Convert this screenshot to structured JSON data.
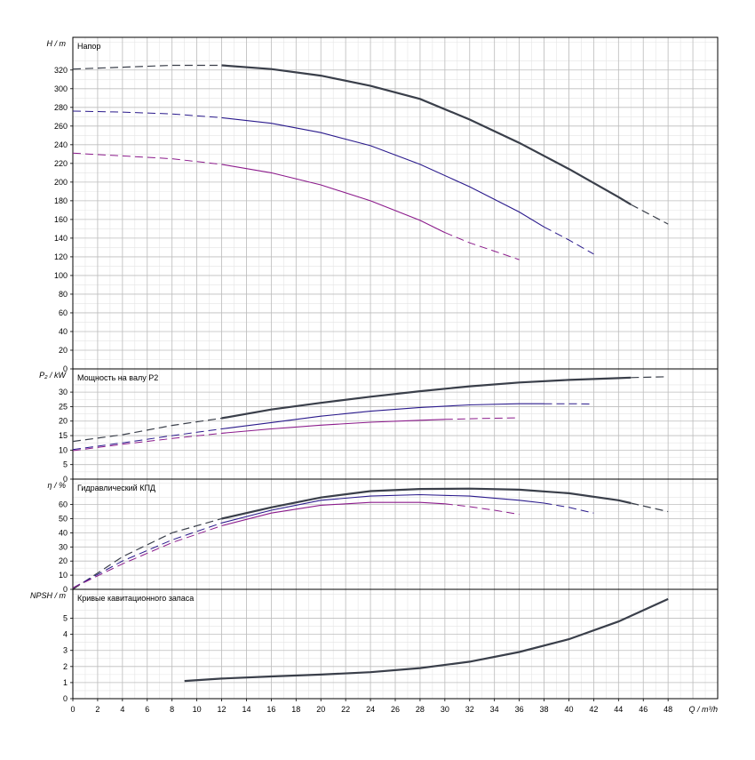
{
  "chart_data": [
    {
      "type": "line",
      "title": "Напор",
      "ylabel": "H / m",
      "xlabel": "Q / m³/h",
      "xlim": [
        0,
        52
      ],
      "ylim": [
        0,
        355
      ],
      "x_ticks": [
        0,
        2,
        4,
        6,
        8,
        10,
        12,
        14,
        16,
        18,
        20,
        22,
        24,
        26,
        28,
        30,
        32,
        34,
        36,
        38,
        40,
        42,
        44,
        46,
        48
      ],
      "y_ticks": [
        0,
        20,
        40,
        60,
        80,
        100,
        120,
        140,
        160,
        180,
        200,
        220,
        240,
        260,
        280,
        300,
        320
      ],
      "grid": true,
      "series": [
        {
          "color": "#3a3f4a",
          "thick": true,
          "solid_range": [
            12,
            45
          ],
          "x": [
            0,
            4,
            8,
            12,
            16,
            20,
            24,
            28,
            32,
            36,
            40,
            44,
            45,
            48
          ],
          "y": [
            321,
            323,
            325,
            325,
            321,
            314,
            303,
            289,
            267,
            242,
            214,
            184,
            176,
            155
          ]
        },
        {
          "color": "#2a1a8c",
          "thick": false,
          "solid_range": [
            12,
            38
          ],
          "x": [
            0,
            4,
            8,
            12,
            16,
            20,
            24,
            28,
            32,
            36,
            38,
            40,
            42
          ],
          "y": [
            276,
            275,
            273,
            269,
            263,
            253,
            239,
            219,
            195,
            168,
            152,
            138,
            123
          ]
        },
        {
          "color": "#8b1a8b",
          "thick": false,
          "solid_range": [
            12,
            30
          ],
          "x": [
            0,
            4,
            8,
            12,
            16,
            20,
            24,
            28,
            30,
            32,
            34,
            36
          ],
          "y": [
            231,
            228,
            225,
            219,
            210,
            197,
            180,
            159,
            146,
            135,
            126,
            117
          ]
        }
      ]
    },
    {
      "type": "line",
      "title": "Мощность на валу P2",
      "ylabel": "P₂ / kW",
      "xlim": [
        0,
        52
      ],
      "ylim": [
        0,
        38
      ],
      "y_ticks": [
        0,
        5,
        10,
        15,
        20,
        25,
        30
      ],
      "grid": true,
      "series": [
        {
          "color": "#3a3f4a",
          "thick": true,
          "solid_range": [
            12,
            45
          ],
          "x": [
            0,
            4,
            8,
            12,
            16,
            20,
            24,
            28,
            32,
            36,
            40,
            44,
            45,
            48
          ],
          "y": [
            13,
            15.3,
            18.5,
            21,
            24,
            26.3,
            28.4,
            30.3,
            32,
            33.3,
            34.2,
            34.8,
            35,
            35.3
          ]
        },
        {
          "color": "#2a1a8c",
          "thick": false,
          "solid_range": [
            12,
            38
          ],
          "x": [
            0,
            4,
            8,
            12,
            16,
            20,
            24,
            28,
            32,
            36,
            38,
            40,
            42
          ],
          "y": [
            10.2,
            12.5,
            15,
            17.3,
            19.5,
            21.7,
            23.4,
            24.7,
            25.6,
            26,
            26,
            26,
            25.9
          ]
        },
        {
          "color": "#8b1a8b",
          "thick": false,
          "solid_range": [
            12,
            30
          ],
          "x": [
            0,
            4,
            8,
            12,
            16,
            20,
            24,
            28,
            30,
            32,
            34,
            36
          ],
          "y": [
            9.8,
            12,
            14,
            15.8,
            17.3,
            18.6,
            19.6,
            20.3,
            20.6,
            20.8,
            21,
            21.1
          ]
        }
      ]
    },
    {
      "type": "line",
      "title": "Гидравлический КПД",
      "ylabel": "η / %",
      "xlim": [
        0,
        52
      ],
      "ylim": [
        0,
        78
      ],
      "y_ticks": [
        0,
        10,
        20,
        30,
        40,
        50,
        60
      ],
      "grid": true,
      "series": [
        {
          "color": "#3a3f4a",
          "thick": true,
          "solid_range": [
            12,
            45
          ],
          "x": [
            0,
            4,
            8,
            12,
            16,
            20,
            24,
            28,
            32,
            36,
            40,
            44,
            45,
            48
          ],
          "y": [
            0,
            23,
            40,
            50,
            58,
            65,
            69.5,
            71,
            71.3,
            70.5,
            68,
            63,
            61,
            55
          ]
        },
        {
          "color": "#2a1a8c",
          "thick": false,
          "solid_range": [
            12,
            38
          ],
          "x": [
            0,
            4,
            8,
            12,
            16,
            20,
            24,
            28,
            32,
            36,
            38,
            40,
            42
          ],
          "y": [
            1,
            20,
            35,
            47,
            56,
            63,
            66,
            67,
            66,
            63,
            61,
            58,
            54
          ]
        },
        {
          "color": "#8b1a8b",
          "thick": false,
          "solid_range": [
            12,
            30
          ],
          "x": [
            0,
            4,
            8,
            12,
            16,
            20,
            24,
            28,
            30,
            32,
            34,
            36
          ],
          "y": [
            1,
            18,
            33,
            45,
            54,
            59.5,
            61.5,
            61.5,
            60.5,
            58.5,
            56,
            53
          ]
        }
      ]
    },
    {
      "type": "line",
      "title": "Кривые кавитационного запаса",
      "ylabel": "NPSH / m",
      "xlabel": "Q / m³/h",
      "xlim": [
        0,
        52
      ],
      "ylim": [
        0,
        6.8
      ],
      "y_ticks": [
        0,
        1,
        2,
        3,
        4,
        5
      ],
      "grid": true,
      "series": [
        {
          "color": "#3a3f4a",
          "thick": true,
          "solid_range": [
            9,
            48
          ],
          "x": [
            9,
            12,
            16,
            20,
            24,
            28,
            32,
            36,
            40,
            44,
            48
          ],
          "y": [
            1.1,
            1.25,
            1.38,
            1.5,
            1.65,
            1.9,
            2.3,
            2.9,
            3.7,
            4.8,
            6.2
          ]
        }
      ]
    }
  ]
}
